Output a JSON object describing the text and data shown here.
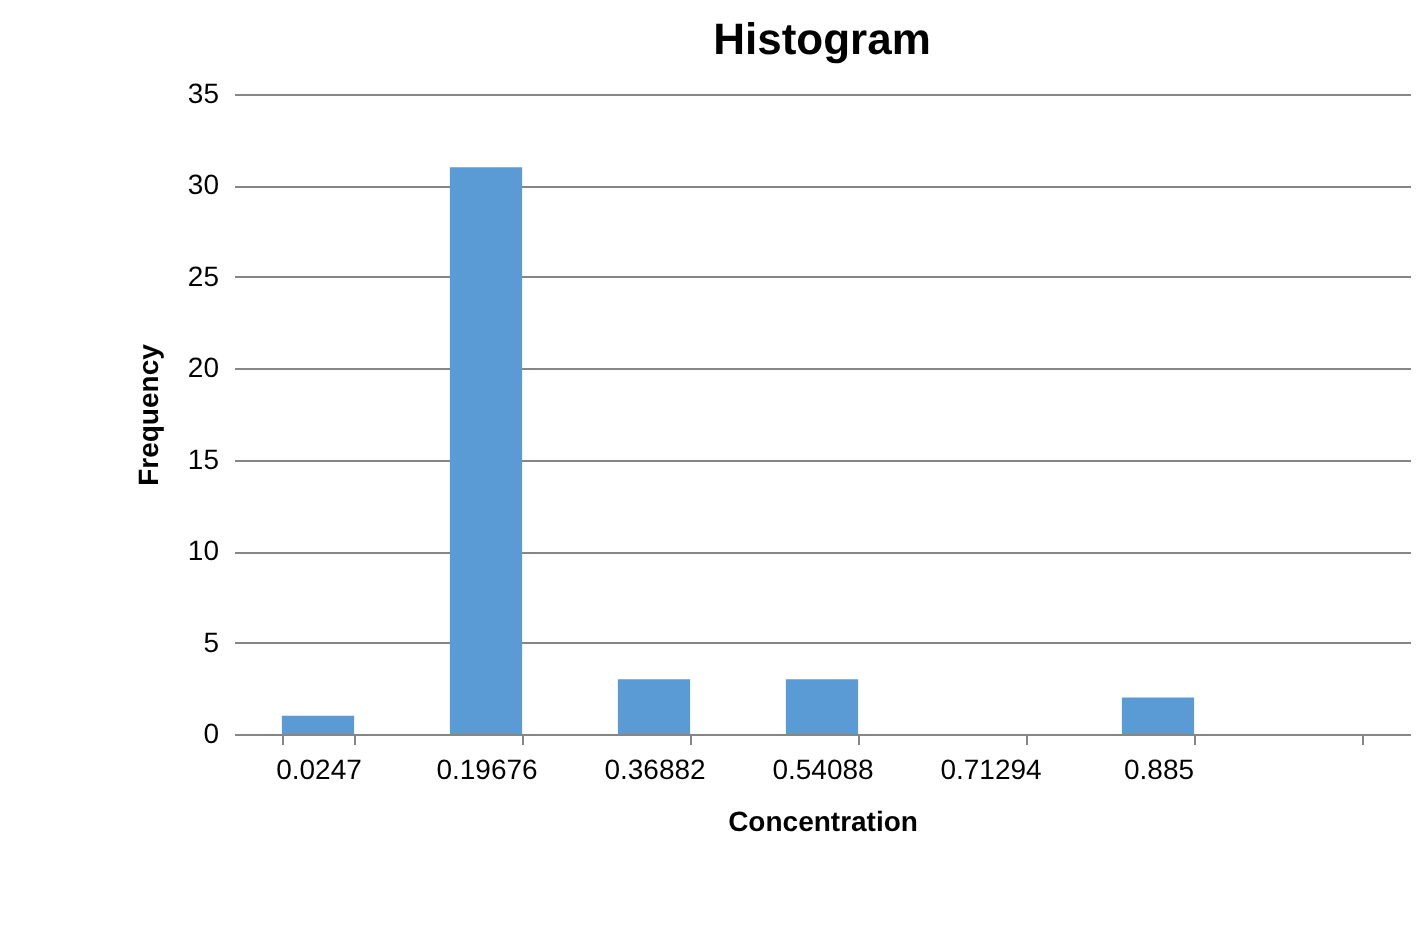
{
  "chart_data": {
    "type": "bar",
    "title": "Histogram",
    "xlabel": "Concentration",
    "ylabel": "Frequency",
    "categories": [
      "0.0247",
      "0.19676",
      "0.36882",
      "0.54088",
      "0.71294",
      "0.885",
      null
    ],
    "values": [
      1,
      31,
      3,
      3,
      0,
      2,
      0
    ],
    "color": "#5b9bd5",
    "ylim": [
      0,
      35
    ],
    "yticks": [
      0,
      5,
      10,
      15,
      20,
      25,
      30,
      35
    ],
    "grid": "y"
  }
}
